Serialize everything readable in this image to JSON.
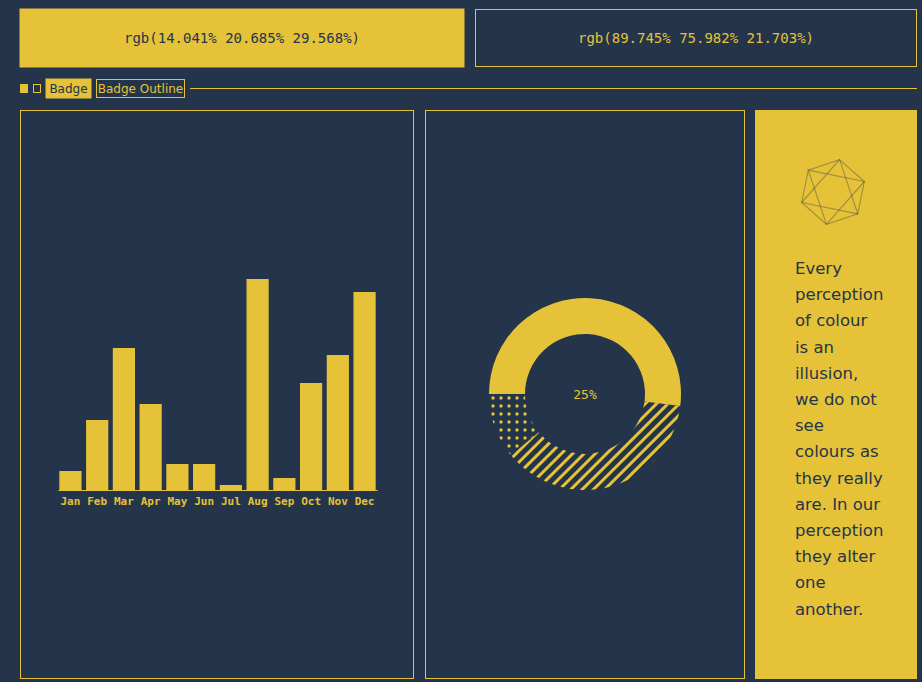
{
  "swatches": [
    {
      "label": "rgb(14.041% 20.685% 29.568%)"
    },
    {
      "label": "rgb(89.745% 75.982% 21.703%)"
    }
  ],
  "badges": [
    "Badge",
    "Badge Outline"
  ],
  "chart_data": [
    {
      "type": "bar",
      "categories": [
        "Jan",
        "Feb",
        "Mar",
        "Apr",
        "May",
        "Jun",
        "Jul",
        "Aug",
        "Sep",
        "Oct",
        "Nov",
        "Dec"
      ],
      "values": [
        19,
        70,
        142,
        86,
        26,
        26,
        5,
        211,
        12,
        107,
        135,
        198
      ],
      "color": "#e5c237",
      "ylim": [
        0,
        211
      ],
      "tick_labels": "x"
    },
    {
      "type": "pie",
      "values": [
        52,
        37,
        11
      ],
      "color": "#e5c237",
      "annotation": "25%"
    }
  ],
  "quote_lines": [
    "Every",
    "perception",
    "of colour",
    "is an",
    "illusion,",
    "we do not",
    "see",
    "colours as",
    "they really",
    "are. In our",
    "perception",
    "they alter",
    "one",
    "another."
  ]
}
